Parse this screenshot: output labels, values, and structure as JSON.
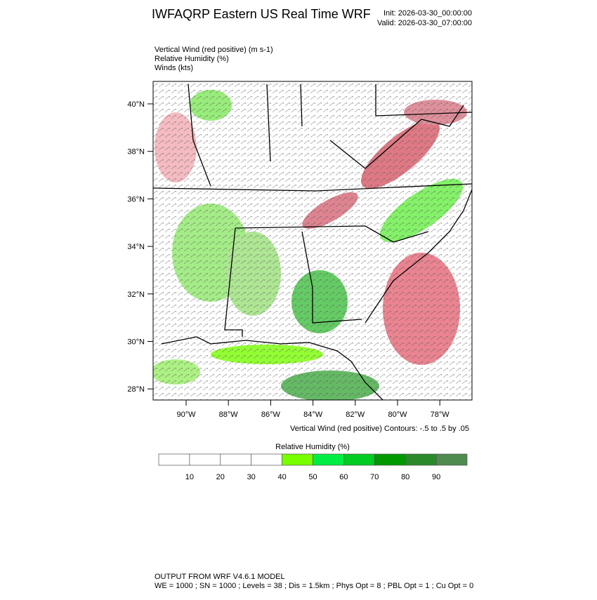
{
  "header": {
    "title": "IWFAQRP Eastern US Real Time WRF",
    "init": "Init: 2026-03-30_00:00:00",
    "valid": "Valid: 2026-03-30_07:00:00"
  },
  "fields": [
    "Vertical Wind (red positive)   (m s-1)",
    "Relative Humidity   (%)",
    "Winds   (kts)"
  ],
  "map": {
    "lat_labels": [
      "40°N",
      "38°N",
      "36°N",
      "34°N",
      "32°N",
      "30°N",
      "28°N"
    ],
    "lon_labels": [
      "90°W",
      "88°W",
      "86°W",
      "84°W",
      "82°W",
      "80°W",
      "78°W"
    ],
    "contour_note": "Vertical Wind (red positive) Contours: -.5 to .5 by .05"
  },
  "colorbar": {
    "title": "Relative Humidity  (%)",
    "labels": [
      10,
      20,
      30,
      40,
      50,
      60,
      70,
      80,
      90
    ],
    "colors": [
      "#ffffff",
      "#ffffff",
      "#ffffff",
      "#ffffff",
      "#77ff00",
      "#00ee44",
      "#00cc22",
      "#009900",
      "#2a8a2a",
      "#4f8a4f"
    ]
  },
  "footer": [
    "OUTPUT FROM WRF V4.6.1 MODEL",
    "WE = 1000 ; SN = 1000 ; Levels = 38 ; Dis = 1.5km ; Phys Opt = 8 ; PBL Opt = 1 ; Cu Opt = 0"
  ]
}
